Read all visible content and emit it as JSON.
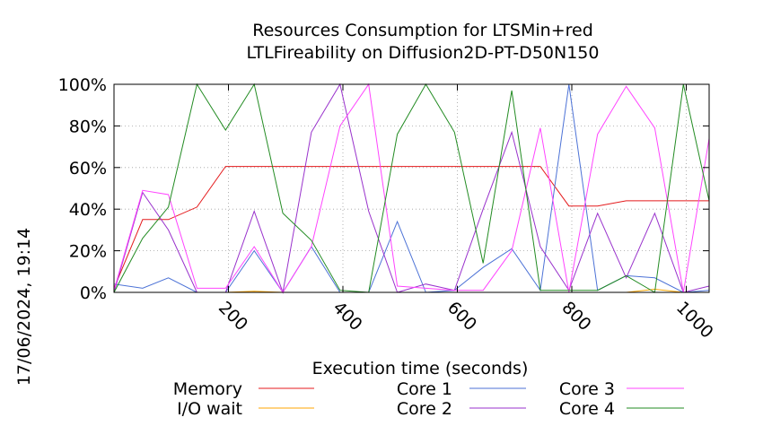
{
  "chart_data": {
    "type": "line",
    "title_lines": [
      "Resources Consumption for LTSMin+red",
      "LTLFireability on Diffusion2D-PT-D50N150"
    ],
    "xlabel": "Execution time (seconds)",
    "ylabel": "",
    "timestamp": "17/06/2024, 19:14",
    "xlim": [
      0,
      1040
    ],
    "ylim": [
      0,
      100
    ],
    "x_ticks": [
      200,
      400,
      600,
      800,
      1000
    ],
    "x_tick_labels": [
      "200",
      "400",
      "600",
      "800",
      "1000"
    ],
    "y_ticks": [
      0,
      20,
      40,
      60,
      80,
      100
    ],
    "y_tick_labels": [
      "0%",
      "20%",
      "40%",
      "60%",
      "80%",
      "100%"
    ],
    "grid": true,
    "legend_position": "bottom",
    "series": [
      {
        "name": "Memory",
        "color": "#e41a1c",
        "points": [
          [
            0,
            2
          ],
          [
            50,
            35
          ],
          [
            95,
            35
          ],
          [
            145,
            41
          ],
          [
            195,
            60.5
          ],
          [
            245,
            60.5
          ],
          [
            295,
            60.5
          ],
          [
            345,
            60.5
          ],
          [
            395,
            60.5
          ],
          [
            445,
            60.5
          ],
          [
            495,
            60.5
          ],
          [
            545,
            60.5
          ],
          [
            595,
            60.5
          ],
          [
            645,
            60.5
          ],
          [
            695,
            60.5
          ],
          [
            745,
            60.5
          ],
          [
            795,
            41.5
          ],
          [
            845,
            41.5
          ],
          [
            895,
            44
          ],
          [
            945,
            44
          ],
          [
            995,
            44
          ],
          [
            1045,
            44
          ]
        ]
      },
      {
        "name": "I/O wait",
        "color": "#ffa500",
        "points": [
          [
            0,
            0
          ],
          [
            50,
            0
          ],
          [
            95,
            0
          ],
          [
            145,
            0
          ],
          [
            195,
            0
          ],
          [
            245,
            0.5
          ],
          [
            295,
            0
          ],
          [
            345,
            0
          ],
          [
            395,
            0
          ],
          [
            445,
            0
          ],
          [
            495,
            0
          ],
          [
            545,
            0
          ],
          [
            595,
            0
          ],
          [
            645,
            0
          ],
          [
            695,
            0
          ],
          [
            745,
            0
          ],
          [
            795,
            0
          ],
          [
            845,
            0
          ],
          [
            895,
            0
          ],
          [
            945,
            1.5
          ],
          [
            995,
            0
          ],
          [
            1045,
            0
          ]
        ]
      },
      {
        "name": "Core 1",
        "color": "#4c72d6",
        "points": [
          [
            0,
            4
          ],
          [
            50,
            2
          ],
          [
            95,
            7
          ],
          [
            145,
            0
          ],
          [
            195,
            0
          ],
          [
            245,
            20
          ],
          [
            295,
            0
          ],
          [
            345,
            22
          ],
          [
            395,
            0
          ],
          [
            445,
            0
          ],
          [
            495,
            34
          ],
          [
            545,
            0
          ],
          [
            595,
            1
          ],
          [
            645,
            12
          ],
          [
            695,
            21
          ],
          [
            745,
            1
          ],
          [
            795,
            100
          ],
          [
            845,
            1
          ],
          [
            895,
            8
          ],
          [
            945,
            7
          ],
          [
            995,
            0
          ],
          [
            1045,
            1
          ]
        ]
      },
      {
        "name": "Core 2",
        "color": "#9932cc",
        "points": [
          [
            0,
            0
          ],
          [
            50,
            48
          ],
          [
            95,
            30
          ],
          [
            145,
            0
          ],
          [
            195,
            0
          ],
          [
            245,
            39
          ],
          [
            295,
            0
          ],
          [
            345,
            77
          ],
          [
            395,
            100
          ],
          [
            445,
            39
          ],
          [
            495,
            0
          ],
          [
            545,
            4
          ],
          [
            595,
            1
          ],
          [
            645,
            40
          ],
          [
            695,
            77
          ],
          [
            745,
            22
          ],
          [
            795,
            1
          ],
          [
            845,
            38
          ],
          [
            895,
            7
          ],
          [
            945,
            38
          ],
          [
            995,
            0
          ],
          [
            1045,
            3
          ]
        ]
      },
      {
        "name": "Core 3",
        "color": "#ff44ff",
        "points": [
          [
            0,
            1
          ],
          [
            50,
            49
          ],
          [
            95,
            47
          ],
          [
            145,
            2
          ],
          [
            195,
            2
          ],
          [
            245,
            22
          ],
          [
            295,
            0
          ],
          [
            345,
            22
          ],
          [
            395,
            80
          ],
          [
            445,
            100
          ],
          [
            495,
            3
          ],
          [
            545,
            2
          ],
          [
            595,
            1
          ],
          [
            645,
            1
          ],
          [
            695,
            20
          ],
          [
            745,
            79
          ],
          [
            795,
            0
          ],
          [
            845,
            76
          ],
          [
            895,
            99
          ],
          [
            945,
            79
          ],
          [
            995,
            0
          ],
          [
            1045,
            74
          ]
        ]
      },
      {
        "name": "Core 4",
        "color": "#228b22",
        "points": [
          [
            0,
            0
          ],
          [
            50,
            26
          ],
          [
            95,
            41
          ],
          [
            145,
            100
          ],
          [
            195,
            78
          ],
          [
            245,
            100
          ],
          [
            295,
            38
          ],
          [
            345,
            25
          ],
          [
            395,
            1
          ],
          [
            445,
            0
          ],
          [
            495,
            76
          ],
          [
            545,
            100
          ],
          [
            595,
            77
          ],
          [
            645,
            14
          ],
          [
            695,
            97
          ],
          [
            745,
            1
          ],
          [
            795,
            1
          ],
          [
            845,
            1
          ],
          [
            895,
            8
          ],
          [
            945,
            0
          ],
          [
            995,
            100
          ],
          [
            1045,
            44
          ]
        ]
      }
    ]
  }
}
